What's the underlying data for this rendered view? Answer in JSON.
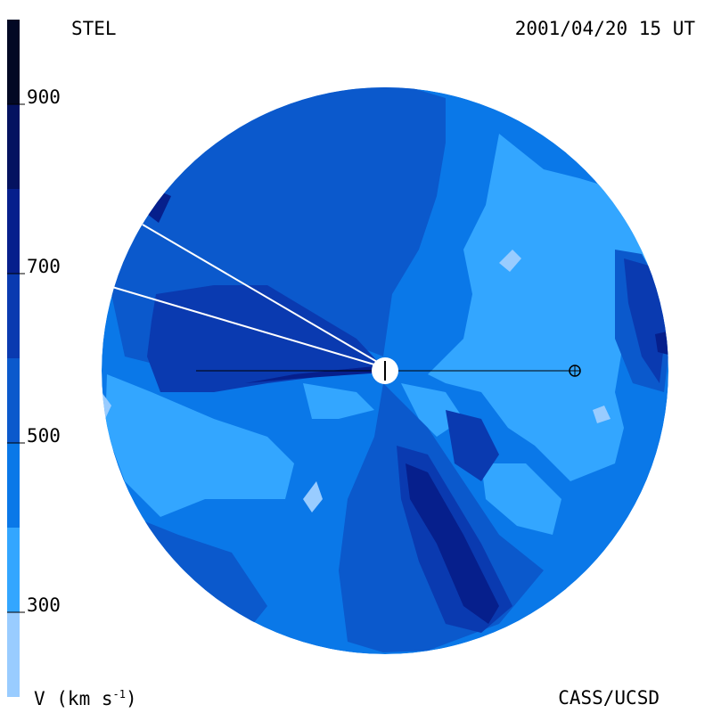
{
  "header": {
    "source_label": "STEL",
    "timestamp": "2001/04/20 15 UT"
  },
  "footer": {
    "credit": "CASS/UCSD"
  },
  "chart_data": {
    "type": "heatmap",
    "title": "",
    "colorbar": {
      "label_base": "V (km s",
      "label_sup": "-1",
      "label_end": ")",
      "units": "km s-1",
      "range": [
        200,
        1000
      ],
      "ticks": [
        300,
        500,
        700,
        900
      ],
      "tick_labels": [
        "300",
        "500",
        "700",
        "900"
      ],
      "levels": [
        {
          "from": 200,
          "to": 300,
          "color": "#99ccff"
        },
        {
          "from": 300,
          "to": 400,
          "color": "#33a6ff"
        },
        {
          "from": 400,
          "to": 500,
          "color": "#0a78e8"
        },
        {
          "from": 500,
          "to": 600,
          "color": "#0b59cc"
        },
        {
          "from": 600,
          "to": 700,
          "color": "#0a3ab0"
        },
        {
          "from": 700,
          "to": 800,
          "color": "#061f8c"
        },
        {
          "from": 800,
          "to": 900,
          "color": "#041260"
        },
        {
          "from": 900,
          "to": 1000,
          "color": "#020824"
        }
      ]
    },
    "colors": {
      "sun": "#ffffff",
      "earth_line": "#000000",
      "los_line": "#ffffff"
    }
  }
}
